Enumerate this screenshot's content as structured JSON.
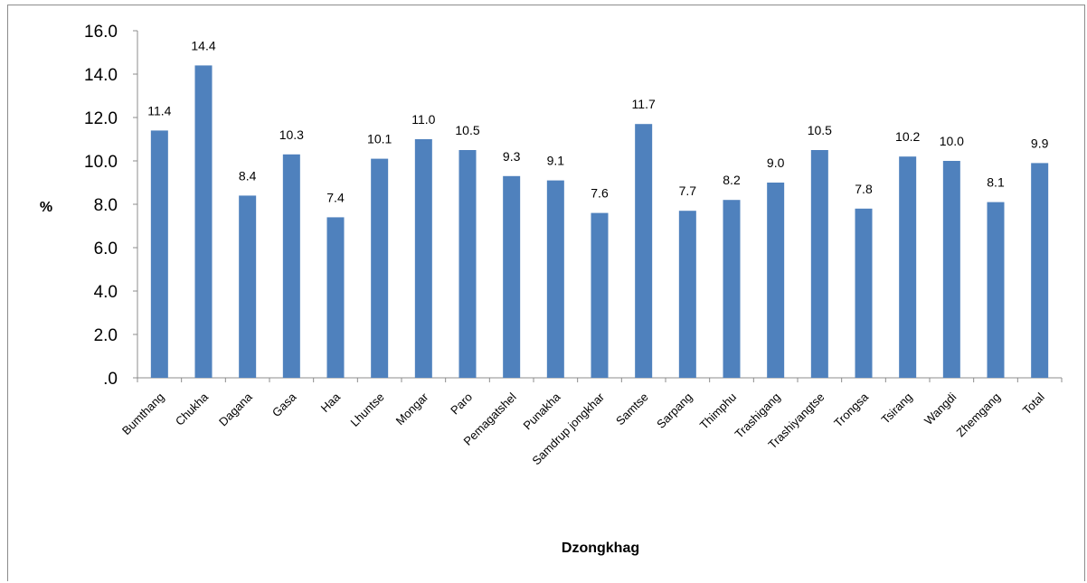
{
  "chart_data": {
    "type": "bar",
    "categories": [
      "Bumthang",
      "Chukha",
      "Dagana",
      "Gasa",
      "Haa",
      "Lhuntse",
      "Mongar",
      "Paro",
      "Pemagatshel",
      "Punakha",
      "Samdrup jongkhar",
      "Samtse",
      "Sarpang",
      "Thimphu",
      "Trashigang",
      "Trashiyangtse",
      "Trongsa",
      "Tsirang",
      "Wangdi",
      "Zhemgang",
      "Total"
    ],
    "values": [
      11.4,
      14.4,
      8.4,
      10.3,
      7.4,
      10.1,
      11.0,
      10.5,
      9.3,
      9.1,
      7.6,
      11.7,
      7.7,
      8.2,
      9.0,
      10.5,
      7.8,
      10.2,
      10.0,
      8.1,
      9.9
    ],
    "data_labels": [
      "11.4",
      "14.4",
      "8.4",
      "10.3",
      "7.4",
      "10.1",
      "11.0",
      "10.5",
      "9.3",
      "9.1",
      "7.6",
      "11.7",
      "7.7",
      "8.2",
      "9.0",
      "10.5",
      "7.8",
      "10.2",
      "10.0",
      "8.1",
      "9.9"
    ],
    "title": "",
    "xlabel": "Dzongkhag",
    "ylabel": "%",
    "ylim": [
      0,
      16
    ],
    "yticks": [
      ".0",
      "2.0",
      "4.0",
      "6.0",
      "8.0",
      "10.0",
      "12.0",
      "14.0",
      "16.0"
    ],
    "grid": false,
    "legend": "none",
    "bar_color": "#4f81bd"
  }
}
